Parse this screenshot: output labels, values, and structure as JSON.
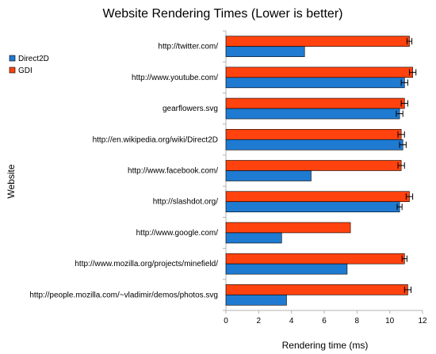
{
  "chart_data": {
    "type": "bar",
    "orientation": "horizontal",
    "title": "Website Rendering Times (Lower is better)",
    "xlabel": "Rendering time (ms)",
    "ylabel": "Website",
    "xlim": [
      0,
      12
    ],
    "xticks": [
      "0",
      "2",
      "4",
      "6",
      "8",
      "10",
      "12"
    ],
    "grid": false,
    "legend_position": "top-left",
    "categories": [
      "http://twitter.com/",
      "http://www.youtube.com/",
      "gearflowers.svg",
      "http://en.wikipedia.org/wiki/Direct2D",
      "http://www.facebook.com/",
      "http://slashdot.org/",
      "http://www.google.com/",
      "http://www.mozilla.org/projects/minefield/",
      "http://people.mozilla.com/~vladimir/demos/photos.svg"
    ],
    "series": [
      {
        "name": "Direct2D",
        "color": "#1f7ad1",
        "values": [
          4.8,
          10.9,
          10.6,
          10.8,
          5.2,
          10.6,
          3.4,
          7.4,
          3.7
        ],
        "errors": [
          0,
          0.2,
          0.2,
          0.2,
          0,
          0.15,
          0,
          0,
          0
        ]
      },
      {
        "name": "GDI",
        "color": "#ff420e",
        "values": [
          11.2,
          11.4,
          10.9,
          10.7,
          10.7,
          11.2,
          7.6,
          10.9,
          11.1
        ],
        "errors": [
          0.15,
          0.2,
          0.2,
          0.2,
          0.2,
          0.2,
          0,
          0.15,
          0.2
        ]
      }
    ]
  }
}
